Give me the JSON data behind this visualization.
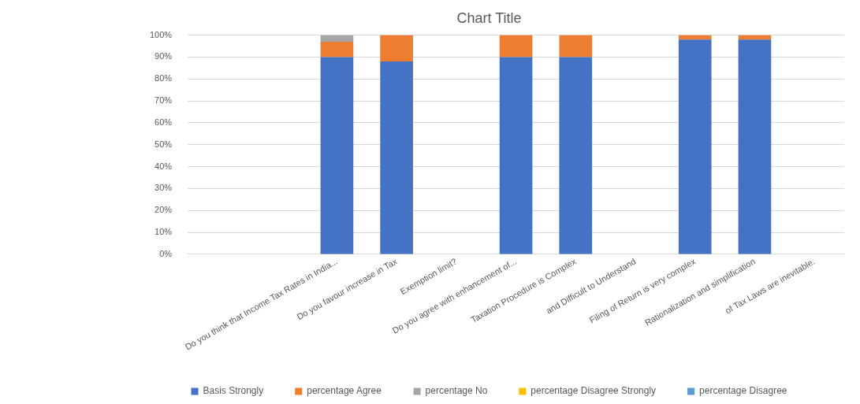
{
  "chart_data": {
    "type": "bar",
    "title": "Chart Title",
    "stacked": true,
    "categories": [
      null,
      null,
      "Do you think that Income Tax Rates in India...",
      "Do you favour increase in Tax",
      "Exemption limit?",
      "Do you agree with enhancement of...",
      "Taxation Procedure is Complex",
      "and Difficult to Understand",
      "Filing of Return is very complex",
      "Rationalization and simplification",
      "of Tax Laws are inevitable."
    ],
    "series": [
      {
        "name": "Basis Strongly",
        "color": "#4472c4",
        "values": [
          null,
          null,
          90,
          88,
          null,
          90,
          90,
          null,
          98,
          98,
          null
        ]
      },
      {
        "name": "percentage Agree",
        "color": "#ed7d31",
        "values": [
          null,
          null,
          7,
          12,
          null,
          10,
          10,
          null,
          2,
          2,
          null
        ]
      },
      {
        "name": "percentage No",
        "color": "#a5a5a5",
        "values": [
          null,
          null,
          3,
          null,
          null,
          null,
          null,
          null,
          null,
          null,
          null
        ]
      },
      {
        "name": "percentage Disagree Strongly",
        "color": "#ffc000",
        "values": [
          null,
          null,
          null,
          null,
          null,
          null,
          null,
          null,
          null,
          null,
          null
        ]
      },
      {
        "name": "percentage Disagree",
        "color": "#5b9bd5",
        "values": [
          null,
          null,
          null,
          null,
          null,
          null,
          null,
          null,
          null,
          null,
          null
        ]
      }
    ],
    "ylim": [
      0,
      100
    ],
    "yticks": [
      {
        "value": 0,
        "label": "0%"
      },
      {
        "value": 10,
        "label": "10%"
      },
      {
        "value": 20,
        "label": "20%"
      },
      {
        "value": 30,
        "label": "30%"
      },
      {
        "value": 40,
        "label": "40%"
      },
      {
        "value": 50,
        "label": "50%"
      },
      {
        "value": 60,
        "label": "60%"
      },
      {
        "value": 70,
        "label": "70%"
      },
      {
        "value": 80,
        "label": "80%"
      },
      {
        "value": 90,
        "label": "90%"
      },
      {
        "value": 100,
        "label": "100%"
      }
    ],
    "grid": "y",
    "legend": "bottom"
  }
}
